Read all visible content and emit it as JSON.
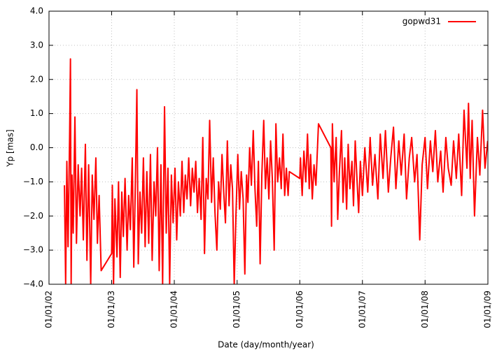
{
  "chart_data": {
    "type": "line",
    "xlabel": "Date (day/month/year)",
    "ylabel": "Yp [mas]",
    "xlim": [
      "2002-01-01",
      "2009-01-01"
    ],
    "xticks": [
      {
        "value": "2002-01-01",
        "label": "01/01/02"
      },
      {
        "value": "2003-01-01",
        "label": "01/01/03"
      },
      {
        "value": "2004-01-01",
        "label": "01/01/04"
      },
      {
        "value": "2005-01-01",
        "label": "01/01/05"
      },
      {
        "value": "2006-01-01",
        "label": "01/01/06"
      },
      {
        "value": "2007-01-01",
        "label": "01/01/07"
      },
      {
        "value": "2008-01-01",
        "label": "01/01/08"
      },
      {
        "value": "2009-01-01",
        "label": "01/01/09"
      }
    ],
    "ylim": [
      -4,
      4
    ],
    "yticks": [
      {
        "value": -4,
        "label": "−4.0"
      },
      {
        "value": -3,
        "label": "−3.0"
      },
      {
        "value": -2,
        "label": "−2.0"
      },
      {
        "value": -1,
        "label": "−1.0"
      },
      {
        "value": 0,
        "label": "0.0"
      },
      {
        "value": 1,
        "label": "1.0"
      },
      {
        "value": 2,
        "label": "2.0"
      },
      {
        "value": 3,
        "label": "3.0"
      },
      {
        "value": 4,
        "label": "4.0"
      }
    ],
    "grid": true,
    "legend": "top right",
    "x": [
      "2002-04-01",
      "2002-04-08",
      "2002-04-15",
      "2002-04-22",
      "2002-05-01",
      "2002-05-06",
      "2002-05-10",
      "2002-05-15",
      "2002-05-22",
      "2002-06-01",
      "2002-06-10",
      "2002-06-20",
      "2002-07-01",
      "2002-07-10",
      "2002-07-20",
      "2002-08-01",
      "2002-08-10",
      "2002-08-20",
      "2002-09-01",
      "2002-09-10",
      "2002-09-20",
      "2002-10-01",
      "2002-10-10",
      "2002-10-20",
      "2002-11-01",
      "2003-01-01",
      "2003-01-05",
      "2003-01-12",
      "2003-01-20",
      "2003-02-01",
      "2003-02-10",
      "2003-02-20",
      "2003-03-01",
      "2003-03-10",
      "2003-03-20",
      "2003-04-01",
      "2003-04-10",
      "2003-04-20",
      "2003-05-01",
      "2003-05-10",
      "2003-05-20",
      "2003-05-28",
      "2003-06-05",
      "2003-06-15",
      "2003-06-25",
      "2003-07-05",
      "2003-07-15",
      "2003-07-25",
      "2003-08-05",
      "2003-08-15",
      "2003-08-25",
      "2003-09-05",
      "2003-09-15",
      "2003-09-25",
      "2003-10-05",
      "2003-10-15",
      "2003-10-25",
      "2003-11-05",
      "2003-11-15",
      "2003-11-25",
      "2003-12-05",
      "2003-12-15",
      "2003-12-25",
      "2004-01-05",
      "2004-01-15",
      "2004-01-25",
      "2004-02-05",
      "2004-02-15",
      "2004-02-25",
      "2004-03-05",
      "2004-03-15",
      "2004-03-25",
      "2004-04-05",
      "2004-04-15",
      "2004-04-25",
      "2004-05-05",
      "2004-05-15",
      "2004-05-25",
      "2004-06-05",
      "2004-06-15",
      "2004-06-25",
      "2004-07-05",
      "2004-07-15",
      "2004-07-25",
      "2004-08-05",
      "2004-08-15",
      "2004-08-25",
      "2004-09-05",
      "2004-09-15",
      "2004-09-25",
      "2004-10-05",
      "2004-10-15",
      "2004-10-25",
      "2004-11-05",
      "2004-11-15",
      "2004-11-25",
      "2004-12-05",
      "2004-12-15",
      "2004-12-25",
      "2005-01-05",
      "2005-01-15",
      "2005-01-25",
      "2005-02-05",
      "2005-02-15",
      "2005-02-25",
      "2005-03-05",
      "2005-03-15",
      "2005-03-25",
      "2005-04-05",
      "2005-04-15",
      "2005-04-25",
      "2005-05-05",
      "2005-05-15",
      "2005-05-25",
      "2005-06-05",
      "2005-06-15",
      "2005-06-25",
      "2005-07-05",
      "2005-07-15",
      "2005-07-25",
      "2005-08-05",
      "2005-08-15",
      "2005-08-25",
      "2005-09-05",
      "2005-09-15",
      "2005-09-25",
      "2005-10-05",
      "2005-10-15",
      "2005-10-25",
      "2005-11-01",
      "2006-01-01",
      "2006-01-05",
      "2006-01-15",
      "2006-01-25",
      "2006-02-05",
      "2006-02-15",
      "2006-02-25",
      "2006-03-05",
      "2006-03-15",
      "2006-03-25",
      "2006-04-05",
      "2006-04-20",
      "2006-07-01",
      "2006-07-05",
      "2006-07-10",
      "2006-07-20",
      "2006-08-01",
      "2006-08-10",
      "2006-08-20",
      "2006-09-01",
      "2006-09-10",
      "2006-09-20",
      "2006-10-01",
      "2006-10-10",
      "2006-10-20",
      "2006-11-01",
      "2006-11-10",
      "2006-11-20",
      "2006-12-01",
      "2006-12-10",
      "2006-12-20",
      "2007-01-01",
      "2007-01-15",
      "2007-02-01",
      "2007-02-15",
      "2007-03-01",
      "2007-03-15",
      "2007-04-01",
      "2007-04-15",
      "2007-05-01",
      "2007-05-15",
      "2007-06-01",
      "2007-06-15",
      "2007-07-01",
      "2007-07-15",
      "2007-08-01",
      "2007-08-15",
      "2007-09-01",
      "2007-09-15",
      "2007-10-01",
      "2007-10-15",
      "2007-11-01",
      "2007-11-15",
      "2007-12-01",
      "2007-12-15",
      "2008-01-01",
      "2008-01-15",
      "2008-02-01",
      "2008-02-15",
      "2008-03-01",
      "2008-03-15",
      "2008-04-01",
      "2008-04-15",
      "2008-05-01",
      "2008-05-15",
      "2008-06-01",
      "2008-06-15",
      "2008-07-01",
      "2008-07-15",
      "2008-08-01",
      "2008-08-15",
      "2008-09-01",
      "2008-09-10",
      "2008-09-20",
      "2008-10-01",
      "2008-10-15",
      "2008-11-01",
      "2008-11-15",
      "2008-12-01",
      "2008-12-15",
      "2008-12-31"
    ],
    "series": [
      {
        "name": "gopwd31",
        "color": "#ff0000",
        "values": [
          -1.1,
          -4.0,
          -0.4,
          -2.9,
          0.3,
          2.6,
          -4.0,
          -0.8,
          -2.5,
          0.9,
          -2.8,
          -0.5,
          -2.0,
          -0.6,
          -2.7,
          0.1,
          -3.3,
          -0.5,
          -4.0,
          -0.8,
          -2.1,
          -0.3,
          -2.8,
          -1.4,
          -3.6,
          -3.1,
          -1.1,
          -4.0,
          -1.5,
          -3.2,
          -1.0,
          -3.8,
          -1.3,
          -2.6,
          -0.9,
          -3.0,
          -1.4,
          -2.4,
          -0.3,
          -3.5,
          -0.8,
          1.7,
          -3.4,
          -1.3,
          -2.5,
          -0.3,
          -2.9,
          -0.7,
          -2.8,
          -0.2,
          -3.3,
          -1.0,
          -2.0,
          0.0,
          -3.6,
          -0.5,
          -4.0,
          1.2,
          -2.5,
          -0.6,
          -4.0,
          -0.8,
          -2.2,
          -0.6,
          -2.7,
          -1.0,
          -2.0,
          -0.4,
          -1.9,
          -0.8,
          -1.5,
          -0.3,
          -1.7,
          -0.6,
          -1.3,
          -0.4,
          -1.9,
          -0.9,
          -2.1,
          0.3,
          -3.1,
          -0.9,
          -1.5,
          0.8,
          -1.6,
          -0.3,
          -1.9,
          -3.0,
          -1.0,
          -1.8,
          -0.2,
          -1.3,
          -2.2,
          0.2,
          -1.7,
          -0.5,
          -1.2,
          -4.0,
          -2.0,
          -0.2,
          -1.8,
          -0.7,
          -1.5,
          -3.7,
          -0.8,
          -1.6,
          0.0,
          -1.1,
          0.5,
          -1.2,
          -2.3,
          -0.4,
          -3.4,
          -0.8,
          0.8,
          -1.2,
          -0.3,
          -1.5,
          0.2,
          -0.9,
          -3.0,
          0.7,
          -1.0,
          -0.3,
          -1.2,
          0.4,
          -1.4,
          -0.6,
          -1.4,
          -0.7,
          -0.9,
          -0.3,
          -1.4,
          -0.1,
          -1.0,
          0.4,
          -1.2,
          -0.2,
          -1.5,
          -0.5,
          -1.1,
          0.7,
          0.0,
          -2.3,
          0.7,
          -1.0,
          0.3,
          -2.1,
          -0.7,
          0.5,
          -1.6,
          -0.3,
          -1.8,
          0.1,
          -1.2,
          -0.4,
          -1.7,
          0.2,
          -1.0,
          -1.9,
          -0.4,
          -1.4,
          0.0,
          -1.3,
          0.3,
          -1.1,
          -0.2,
          -1.5,
          0.4,
          -0.9,
          0.5,
          -1.3,
          -0.3,
          0.6,
          -1.2,
          0.2,
          -0.8,
          0.4,
          -1.5,
          -0.3,
          0.3,
          -1.0,
          -0.2,
          -2.7,
          -0.5,
          0.3,
          -1.2,
          0.2,
          -0.7,
          0.5,
          -1.0,
          -0.1,
          -1.3,
          0.3,
          -0.6,
          -1.1,
          0.2,
          -0.9,
          0.4,
          -1.4,
          1.1,
          -0.6,
          1.3,
          -0.9,
          0.8,
          -2.0,
          0.3,
          -0.8,
          1.1,
          -0.6,
          0.2
        ]
      }
    ]
  }
}
